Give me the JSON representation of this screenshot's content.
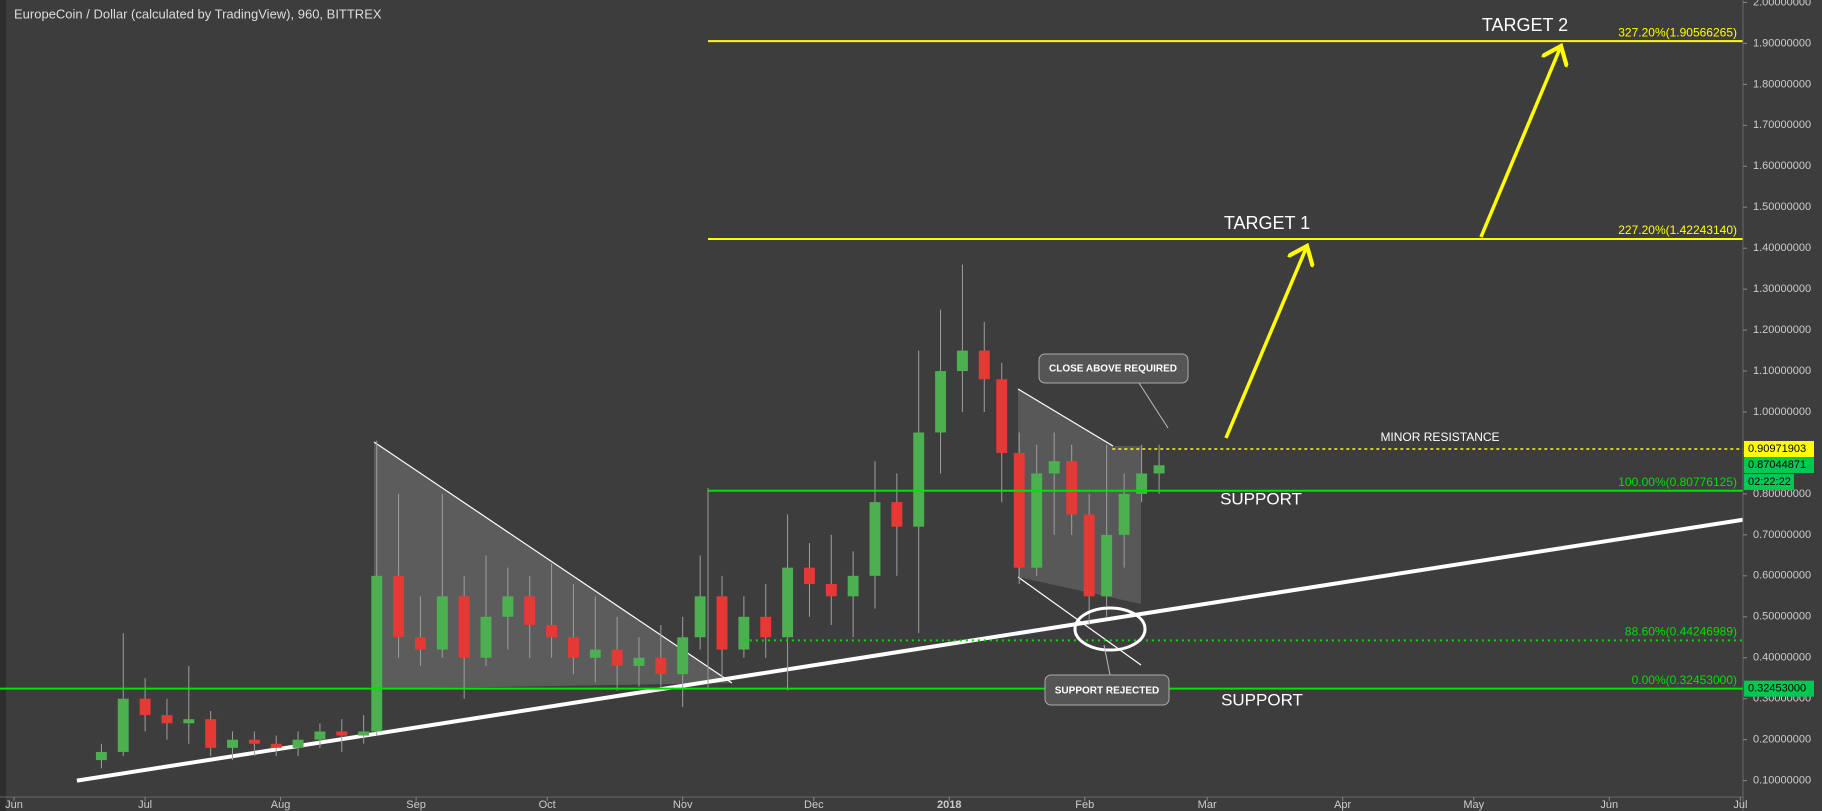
{
  "chart_data": {
    "type": "candlestick",
    "title": "EuropeCoin / Dollar (calculated by TradingView), 960, BITTREX",
    "x": [
      20,
      25,
      30,
      35,
      40,
      45,
      50,
      55,
      60,
      65,
      70,
      75,
      80,
      83,
      88,
      93,
      98,
      103,
      108,
      113,
      118,
      123,
      128,
      133,
      138,
      143,
      148,
      153,
      157,
      162,
      167,
      172,
      177,
      182,
      187,
      192,
      197,
      202,
      207,
      212,
      217,
      222,
      226,
      230,
      234,
      238,
      242,
      246,
      250,
      254,
      258,
      262
    ],
    "open": [
      0.15,
      0.17,
      0.3,
      0.26,
      0.24,
      0.25,
      0.18,
      0.2,
      0.19,
      0.18,
      0.2,
      0.22,
      0.21,
      0.22,
      0.6,
      0.45,
      0.42,
      0.55,
      0.4,
      0.5,
      0.55,
      0.48,
      0.45,
      0.4,
      0.42,
      0.38,
      0.4,
      0.36,
      0.45,
      0.55,
      0.42,
      0.5,
      0.45,
      0.62,
      0.58,
      0.55,
      0.6,
      0.78,
      0.72,
      0.95,
      1.1,
      1.15,
      1.08,
      0.9,
      0.62,
      0.85,
      0.88,
      0.75,
      0.55,
      0.7,
      0.8,
      0.85
    ],
    "high": [
      0.19,
      0.46,
      0.35,
      0.3,
      0.38,
      0.27,
      0.22,
      0.22,
      0.21,
      0.22,
      0.24,
      0.25,
      0.26,
      0.93,
      0.8,
      0.55,
      0.8,
      0.6,
      0.65,
      0.62,
      0.6,
      0.63,
      0.58,
      0.55,
      0.5,
      0.45,
      0.48,
      0.5,
      0.65,
      0.6,
      0.55,
      0.58,
      0.75,
      0.68,
      0.7,
      0.66,
      0.88,
      0.85,
      1.15,
      1.25,
      1.36,
      1.22,
      1.12,
      0.95,
      0.92,
      0.95,
      0.92,
      0.8,
      0.92,
      0.85,
      0.92,
      0.92
    ],
    "low": [
      0.13,
      0.16,
      0.22,
      0.2,
      0.19,
      0.16,
      0.15,
      0.16,
      0.16,
      0.16,
      0.18,
      0.17,
      0.19,
      0.21,
      0.4,
      0.38,
      0.4,
      0.3,
      0.38,
      0.42,
      0.4,
      0.4,
      0.36,
      0.34,
      0.32,
      0.33,
      0.33,
      0.28,
      0.42,
      0.35,
      0.4,
      0.4,
      0.32,
      0.5,
      0.48,
      0.45,
      0.52,
      0.6,
      0.46,
      0.85,
      1.0,
      1.0,
      0.78,
      0.58,
      0.6,
      0.7,
      0.7,
      0.48,
      0.5,
      0.62,
      0.78,
      0.8
    ],
    "close": [
      0.17,
      0.3,
      0.26,
      0.24,
      0.25,
      0.18,
      0.2,
      0.19,
      0.18,
      0.2,
      0.22,
      0.21,
      0.22,
      0.6,
      0.45,
      0.42,
      0.55,
      0.4,
      0.5,
      0.55,
      0.48,
      0.45,
      0.4,
      0.42,
      0.38,
      0.4,
      0.36,
      0.45,
      0.55,
      0.42,
      0.5,
      0.45,
      0.62,
      0.58,
      0.55,
      0.6,
      0.78,
      0.72,
      0.95,
      1.1,
      1.15,
      1.08,
      0.9,
      0.62,
      0.85,
      0.88,
      0.75,
      0.55,
      0.7,
      0.8,
      0.85,
      0.87
    ],
    "up_color": "#4caf50",
    "down_color": "#e53935",
    "xlim": [
      -3.2,
      395.6
    ],
    "xticks": [
      {
        "value": 0,
        "label": "Jun"
      },
      {
        "value": 30,
        "label": "Jul"
      },
      {
        "value": 61,
        "label": "Aug"
      },
      {
        "value": 92,
        "label": "Sep"
      },
      {
        "value": 122,
        "label": "Oct"
      },
      {
        "value": 153,
        "label": "Nov"
      },
      {
        "value": 183,
        "label": "Dec"
      },
      {
        "value": 214,
        "label": "2018"
      },
      {
        "value": 245,
        "label": "Feb"
      },
      {
        "value": 273,
        "label": "Mar"
      },
      {
        "value": 304,
        "label": "Apr"
      },
      {
        "value": 334,
        "label": "May"
      },
      {
        "value": 365,
        "label": "Jun"
      },
      {
        "value": 395,
        "label": "Jul"
      }
    ],
    "ylim": [
      0.06,
      2.006
    ],
    "yticks": [
      {
        "value": 0.1,
        "label": "0.10000000"
      },
      {
        "value": 0.2,
        "label": "0.20000000"
      },
      {
        "value": 0.3,
        "label": "0.30000000"
      },
      {
        "value": 0.4,
        "label": "0.40000000"
      },
      {
        "value": 0.5,
        "label": "0.50000000"
      },
      {
        "value": 0.6,
        "label": "0.60000000"
      },
      {
        "value": 0.7,
        "label": "0.70000000"
      },
      {
        "value": 0.8,
        "label": "0.80000000"
      },
      {
        "value": 0.9,
        "label": "0.90000000"
      },
      {
        "value": 1.0,
        "label": "1.00000000"
      },
      {
        "value": 1.1,
        "label": "1.10000000"
      },
      {
        "value": 1.2,
        "label": "1.20000000"
      },
      {
        "value": 1.3,
        "label": "1.30000000"
      },
      {
        "value": 1.4,
        "label": "1.40000000"
      },
      {
        "value": 1.5,
        "label": "1.50000000"
      },
      {
        "value": 1.6,
        "label": "1.60000000"
      },
      {
        "value": 1.7,
        "label": "1.70000000"
      },
      {
        "value": 1.8,
        "label": "1.80000000"
      },
      {
        "value": 1.9,
        "label": "1.90000000"
      },
      {
        "value": 2.0,
        "label": "2.00000000"
      }
    ],
    "levels": [
      {
        "label": "327.20%(1.90566265)",
        "value": 1.90566265,
        "color": "#ffff00",
        "x_start": 158.8,
        "style": "solid"
      },
      {
        "label": "227.20%(1.42243140)",
        "value": 1.4224314,
        "color": "#ffff00",
        "x_start": 158.8,
        "style": "solid"
      },
      {
        "label": "100.00%(0.80776125)",
        "value": 0.80776125,
        "color": "#00e000",
        "x_start": 158.8,
        "style": "solid"
      },
      {
        "label": "88.60%(0.44246989)",
        "value": 0.44246989,
        "color": "#00e000",
        "x_start": 167,
        "style": "dotted"
      },
      {
        "label": "0.00%(0.32453000)",
        "value": 0.32453,
        "color": "#00e000",
        "x_start": -3.2,
        "style": "solid"
      }
    ],
    "price_labels": [
      {
        "label": "0.90971903",
        "value": 0.90971903,
        "color": "#ffff00",
        "line_from": 251.3
      },
      {
        "label": "0.87044871",
        "value": 0.87044871,
        "color": "#00c853"
      },
      {
        "label": "0.32453000",
        "value": 0.32453,
        "color": "#00c853"
      }
    ],
    "countdown": "02:22:22",
    "trendline": {
      "x": [
        14.4,
        395.6
      ],
      "y": [
        0.1,
        0.737
      ],
      "color": "#ffffff"
    },
    "annotations": [
      "TARGET 2",
      "TARGET 1",
      "MINOR RESISTANCE",
      "SUPPORT",
      "SUPPORT",
      "CLOSE ABOVE REQUIRED",
      "SUPPORT REJECTED"
    ]
  }
}
